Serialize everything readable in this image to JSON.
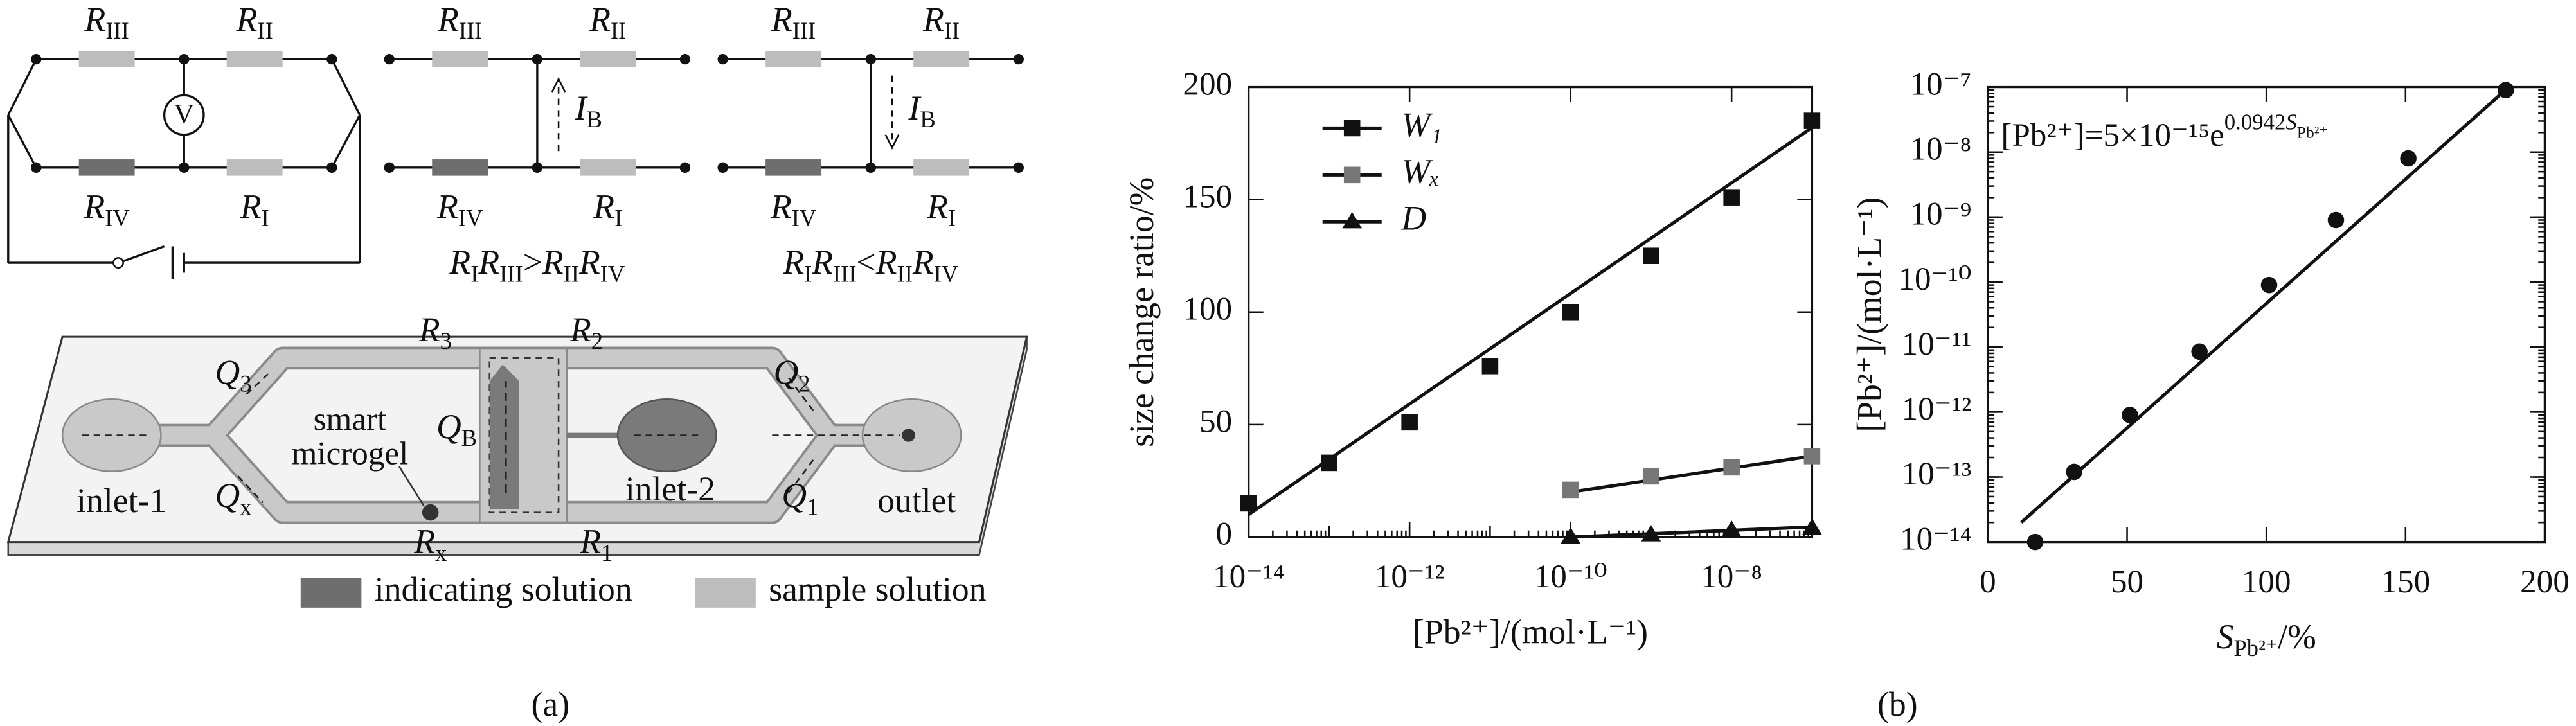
{
  "diagram": {
    "circuits": [
      {
        "resistors": [
          {
            "symbol": "R",
            "sub": "III"
          },
          {
            "symbol": "R",
            "sub": "II"
          },
          {
            "symbol": "R",
            "sub": "IV"
          },
          {
            "symbol": "R",
            "sub": "I"
          }
        ],
        "meter": "V"
      },
      {
        "resistors": [
          {
            "symbol": "R",
            "sub": "III"
          },
          {
            "symbol": "R",
            "sub": "II"
          },
          {
            "symbol": "R",
            "sub": "IV"
          },
          {
            "symbol": "R",
            "sub": "I"
          }
        ],
        "current": {
          "symbol": "I",
          "sub": "B"
        },
        "condition": {
          "symbol": "R",
          "left": [
            "I",
            "III"
          ],
          "op": ">",
          "right": [
            "II",
            "IV"
          ]
        }
      },
      {
        "resistors": [
          {
            "symbol": "R",
            "sub": "III"
          },
          {
            "symbol": "R",
            "sub": "II"
          },
          {
            "symbol": "R",
            "sub": "IV"
          },
          {
            "symbol": "R",
            "sub": "I"
          }
        ],
        "current": {
          "symbol": "I",
          "sub": "B"
        },
        "condition": {
          "symbol": "R",
          "left": [
            "I",
            "III"
          ],
          "op": "<",
          "right": [
            "II",
            "IV"
          ]
        }
      }
    ],
    "chip": {
      "resistances": [
        {
          "symbol": "R",
          "sub": "3"
        },
        {
          "symbol": "R",
          "sub": "2"
        },
        {
          "symbol": "R",
          "sub": "x"
        },
        {
          "symbol": "R",
          "sub": "1"
        }
      ],
      "flows": [
        {
          "symbol": "Q",
          "sub": "3"
        },
        {
          "symbol": "Q",
          "sub": "2"
        },
        {
          "symbol": "Q",
          "sub": "B"
        },
        {
          "symbol": "Q",
          "sub": "x"
        },
        {
          "symbol": "Q",
          "sub": "1"
        }
      ],
      "microgel": [
        "smart",
        "microgel"
      ],
      "ports": [
        "inlet-1",
        "inlet-2",
        "outlet"
      ]
    },
    "legend": [
      "indicating solution",
      "sample solution"
    ],
    "label": "(a)"
  },
  "figure_label": "(b)",
  "chart_data": [
    {
      "type": "scatter",
      "xscale": "log",
      "x": [
        1e-14,
        1e-13,
        1e-12,
        1e-11,
        1e-10,
        1e-09,
        1e-08,
        1e-07
      ],
      "xlim": [
        1e-14,
        1e-07
      ],
      "xticks": [
        {
          "value": 1e-14,
          "label": "10⁻¹⁴"
        },
        {
          "value": 1e-12,
          "label": "10⁻¹²"
        },
        {
          "value": 1e-10,
          "label": "10⁻¹⁰"
        },
        {
          "value": 1e-08,
          "label": "10⁻⁸"
        }
      ],
      "ylim": [
        0,
        200
      ],
      "yticks": [
        0,
        50,
        100,
        150,
        200
      ],
      "xlabel": "[Pb²⁺]/(mol·L⁻¹)",
      "ylabel": "size change ratio/%",
      "legend": "upper left",
      "series": [
        {
          "name": "W₁",
          "color": "#111111",
          "marker": "square",
          "values": [
            15,
            33,
            51,
            76,
            100,
            125,
            151,
            185
          ],
          "fit": {
            "x": [
              1e-14,
              1e-07
            ],
            "values": [
              10,
              182
            ]
          }
        },
        {
          "name": "Wₓ",
          "color": "#777777",
          "marker": "square",
          "values": [
            null,
            null,
            null,
            null,
            21,
            27,
            31,
            36
          ],
          "fit": {
            "x": [
              1e-10,
              1e-07
            ],
            "values": [
              20,
              36
            ]
          }
        },
        {
          "name": "D",
          "color": "#111111",
          "marker": "triangle",
          "values": [
            null,
            null,
            null,
            null,
            0,
            1,
            3,
            4
          ],
          "fit": {
            "x": [
              1e-10,
              1e-07
            ],
            "values": [
              0,
              4.5
            ]
          }
        }
      ]
    },
    {
      "type": "scatter",
      "yscale": "log",
      "x": [
        17,
        31,
        51,
        76,
        101,
        125,
        151,
        186
      ],
      "values": [
        1e-14,
        1.2e-13,
        9e-13,
        8.5e-12,
        9e-11,
        9e-10,
        8e-09,
        9e-08
      ],
      "color": "#111111",
      "fit": {
        "x": [
          12,
          187
        ],
        "values": [
          2e-14,
          1e-07
        ]
      },
      "xlim": [
        0,
        200
      ],
      "xticks": [
        0,
        50,
        100,
        150,
        200
      ],
      "ylim": [
        1e-14,
        1e-07
      ],
      "yticks": [
        {
          "value": 1e-14,
          "label": "10⁻¹⁴"
        },
        {
          "value": 1e-13,
          "label": "10⁻¹³"
        },
        {
          "value": 1e-12,
          "label": "10⁻¹²"
        },
        {
          "value": 1e-11,
          "label": "10⁻¹¹"
        },
        {
          "value": 1e-10,
          "label": "10⁻¹⁰"
        },
        {
          "value": 1e-09,
          "label": "10⁻⁹"
        },
        {
          "value": 1e-08,
          "label": "10⁻⁸"
        },
        {
          "value": 1e-07,
          "label": "10⁻⁷"
        }
      ],
      "xlabel": {
        "symbol": "S",
        "sub": "Pb²⁺",
        "unit": "/%"
      },
      "ylabel": "[Pb²⁺]/(mol·L⁻¹)",
      "annotation": {
        "text": "[Pb²⁺]=5×10⁻¹⁵e",
        "exponent": "0.0942",
        "symbol": "S",
        "sub": "Pb²⁺"
      }
    }
  ]
}
